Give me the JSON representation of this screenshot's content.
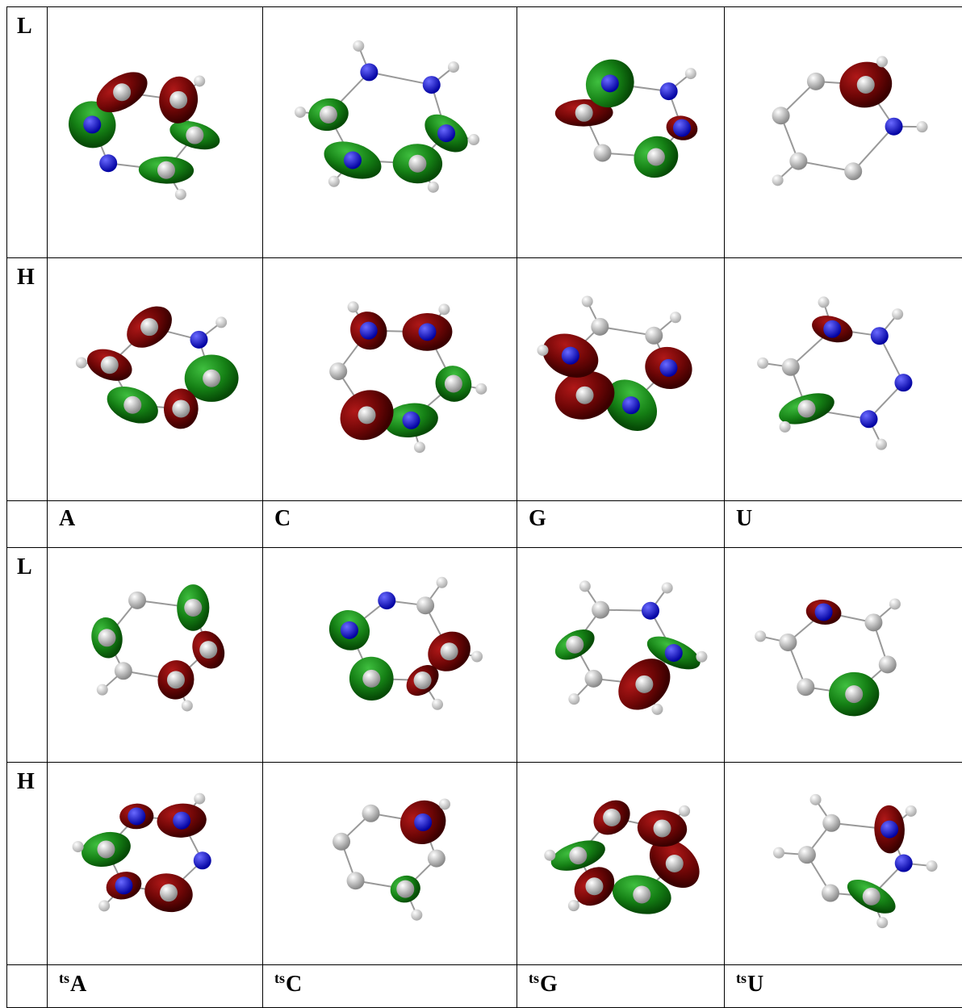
{
  "sections": [
    {
      "orbital_rows": [
        "L",
        "H"
      ],
      "molecules": [
        {
          "prefix": null,
          "name": "A"
        },
        {
          "prefix": null,
          "name": "C"
        },
        {
          "prefix": null,
          "name": "G"
        },
        {
          "prefix": null,
          "name": "U"
        }
      ]
    },
    {
      "orbital_rows": [
        "L",
        "H"
      ],
      "molecules": [
        {
          "prefix": "ts",
          "name": "A"
        },
        {
          "prefix": "ts",
          "name": "C"
        },
        {
          "prefix": "ts",
          "name": "G"
        },
        {
          "prefix": "ts",
          "name": "U"
        }
      ]
    }
  ]
}
